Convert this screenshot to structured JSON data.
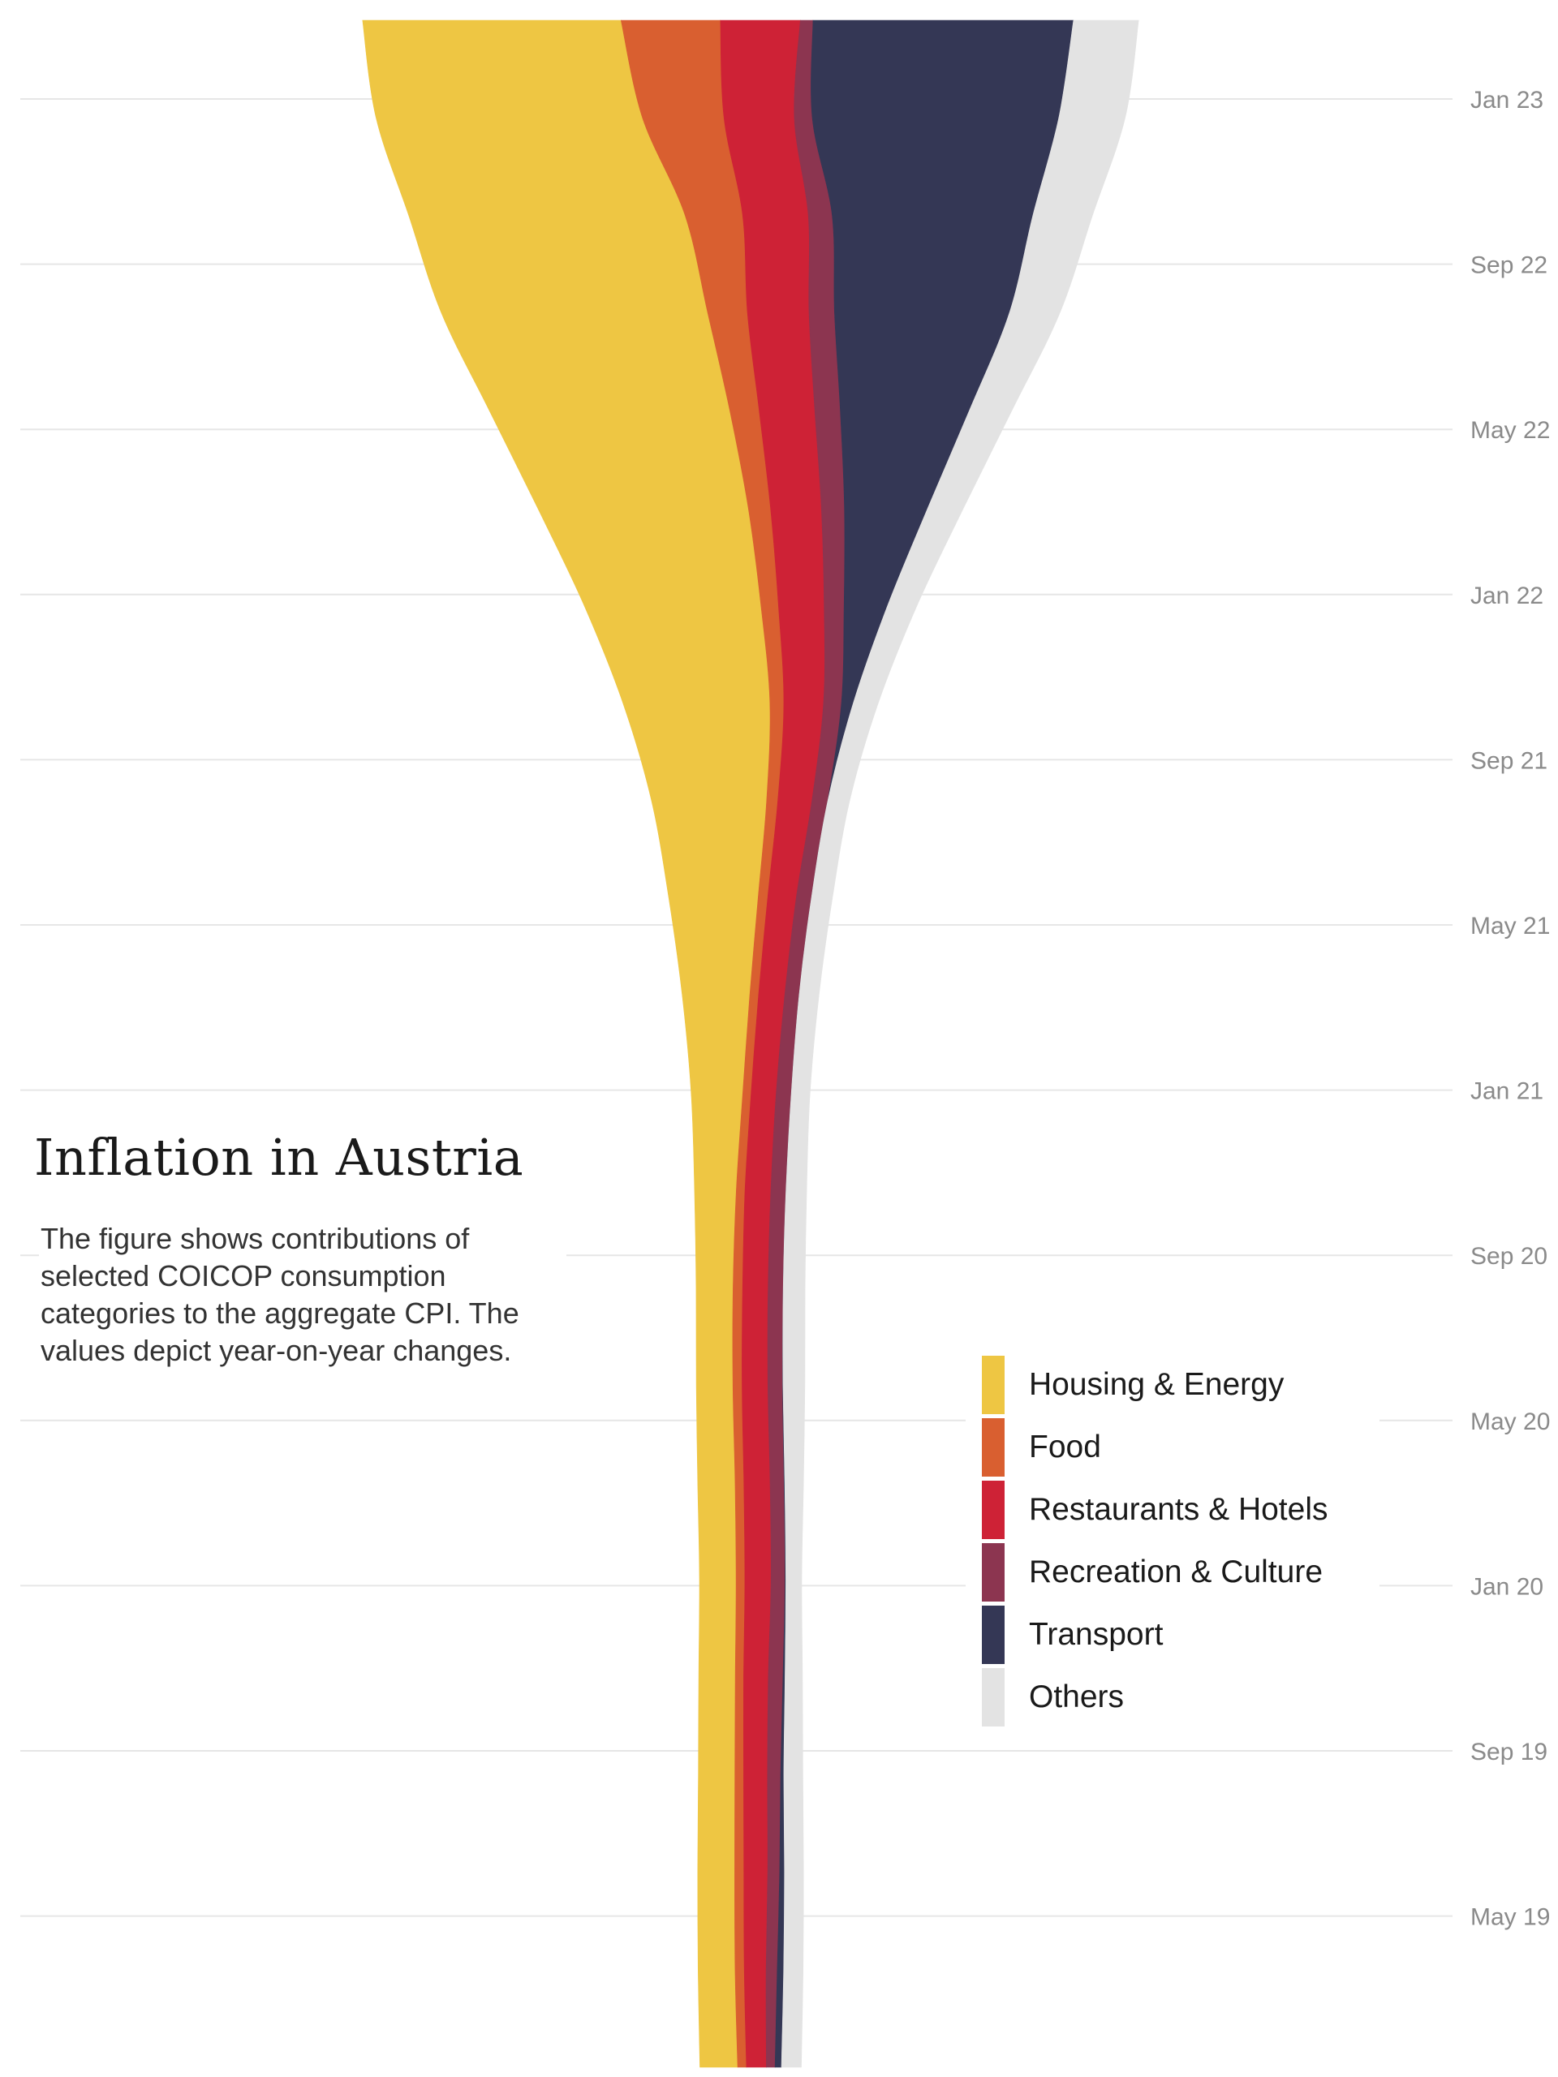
{
  "chart_data": {
    "type": "area",
    "title": "Inflation in Austria",
    "subtitle": "The figure shows contributions of selected COICOP consumption categories to the aggregate CPI. The values depict year-on-year changes.",
    "tick_labels": [
      "Jan 23",
      "Sep 22",
      "May 22",
      "Jan 22",
      "Sep 21",
      "May 21",
      "Jan 21",
      "Sep 20",
      "May 20",
      "Jan 20",
      "Sep 19",
      "May 19"
    ],
    "grid": true,
    "legend_position": "right",
    "series": [
      {
        "name": "Housing & Energy",
        "color": "#EEC643",
        "values": [
          0.95,
          0.93,
          0.93,
          0.92,
          0.92,
          0.92,
          0.94,
          0.92,
          0.93,
          1.05,
          1.3,
          1.7,
          2.25,
          2.9,
          3.7,
          4.45,
          5.3,
          6.05,
          6.7,
          6.95,
          6.7,
          6.5
        ]
      },
      {
        "name": "Food",
        "color": "#D95F30",
        "values": [
          0.22,
          0.23,
          0.23,
          0.22,
          0.21,
          0.22,
          0.22,
          0.23,
          0.24,
          0.22,
          0.21,
          0.22,
          0.24,
          0.28,
          0.35,
          0.44,
          0.56,
          0.74,
          1.0,
          1.45,
          2.05,
          2.5
        ]
      },
      {
        "name": "Restaurants & Hotels",
        "color": "#CE2236",
        "values": [
          0.5,
          0.55,
          0.6,
          0.6,
          0.62,
          0.66,
          0.66,
          0.65,
          0.64,
          0.65,
          0.63,
          0.66,
          0.72,
          0.86,
          1.0,
          1.15,
          1.28,
          1.4,
          1.55,
          1.65,
          1.77,
          2.01
        ]
      },
      {
        "name": "Recreation & Culture",
        "color": "#8C3550",
        "values": [
          0.22,
          0.28,
          0.3,
          0.33,
          0.37,
          0.35,
          0.35,
          0.37,
          0.38,
          0.38,
          0.38,
          0.36,
          0.38,
          0.4,
          0.45,
          0.5,
          0.58,
          0.64,
          0.64,
          0.6,
          0.45,
          0.32
        ]
      },
      {
        "name": "Transport",
        "color": "#343755",
        "values": [
          0.16,
          0.16,
          0.12,
          0.08,
          0.05,
          0.02,
          0.02,
          0.01,
          0.0,
          0.0,
          0.0,
          0.0,
          0.0,
          0.0,
          0.3,
          1.1,
          2.1,
          3.25,
          4.4,
          5.05,
          6.2,
          6.55
        ]
      },
      {
        "name": "Others",
        "color": "#E3E3E3",
        "values": [
          0.5,
          0.49,
          0.48,
          0.48,
          0.44,
          0.4,
          0.47,
          0.55,
          0.55,
          0.52,
          0.47,
          0.5,
          0.53,
          0.55,
          0.63,
          0.74,
          0.9,
          1.07,
          1.27,
          1.5,
          1.67,
          1.64
        ]
      }
    ]
  }
}
